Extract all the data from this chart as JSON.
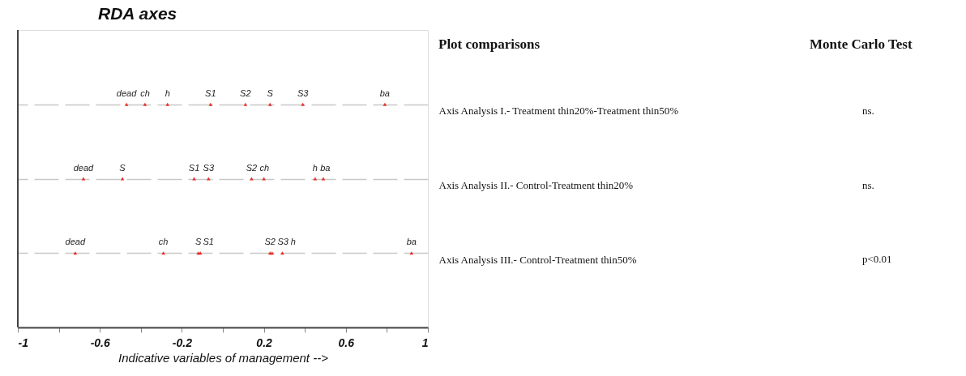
{
  "chart_data": {
    "type": "scatter",
    "orientation": "horizontal",
    "title": "RDA axes",
    "xlabel": "Indicative variables of management -->",
    "xlim": [
      -1,
      1
    ],
    "xticks": [
      -1,
      {
        "value": -0.8,
        "label": null
      },
      -0.6,
      {
        "value": -0.4,
        "label": null
      },
      -0.2,
      {
        "value": 0,
        "label": null
      },
      0.2,
      {
        "value": 0.4,
        "label": null
      },
      0.6,
      {
        "value": 0.8,
        "label": null
      },
      1
    ],
    "categories": [
      "Axis Analysis I.- Treatment thin20%-Treatment thin50%",
      "Axis Analysis II.- Control-Treatment thin20%",
      "Axis Analysis III.- Control-Treatment thin50%"
    ],
    "grid": "y",
    "marker": "triangle",
    "series": [
      {
        "name": "dead",
        "color": "#e8302a",
        "values": [
          -0.47,
          -0.68,
          -0.72
        ]
      },
      {
        "name": "ch",
        "color": "#e8302a",
        "values": [
          -0.38,
          0.2,
          -0.29
        ]
      },
      {
        "name": "h",
        "color": "#e8302a",
        "values": [
          -0.27,
          0.45,
          0.29
        ]
      },
      {
        "name": "S1",
        "color": "#e8302a",
        "values": [
          -0.06,
          -0.14,
          -0.11
        ]
      },
      {
        "name": "S2",
        "color": "#e8302a",
        "values": [
          0.11,
          0.14,
          0.23
        ]
      },
      {
        "name": "S",
        "color": "#e8302a",
        "values": [
          0.23,
          -0.49,
          -0.12
        ]
      },
      {
        "name": "S3",
        "color": "#e8302a",
        "values": [
          0.39,
          -0.07,
          0.24
        ]
      },
      {
        "name": "ba",
        "color": "#e8302a",
        "values": [
          0.79,
          0.49,
          0.92
        ]
      }
    ],
    "annotations": [
      "Plot comparisons",
      "Monte Carlo Test",
      "ns.",
      "ns.",
      "p<0.01"
    ]
  }
}
